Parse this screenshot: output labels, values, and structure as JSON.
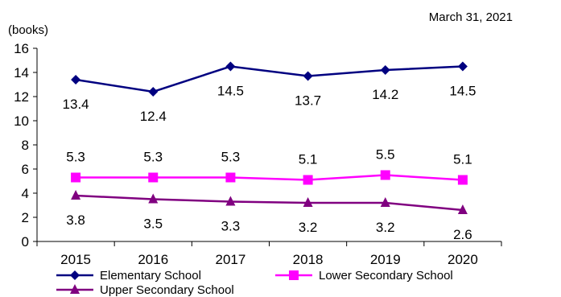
{
  "chart_data": {
    "type": "line",
    "date_note": "March 31, 2021",
    "ylabel": "(books)",
    "xlabel": "",
    "title": "",
    "ylim": [
      0,
      16
    ],
    "yticks": [
      "0",
      "2",
      "4",
      "6",
      "8",
      "10",
      "12",
      "14",
      "16"
    ],
    "categories": [
      "2015",
      "2016",
      "2017",
      "2018",
      "2019",
      "2020"
    ],
    "grid": false,
    "legend_position": "bottom",
    "series": [
      {
        "name": "Elementary School",
        "color": "#000080",
        "marker": "diamond",
        "values": [
          13.4,
          12.4,
          14.5,
          13.7,
          14.2,
          14.5
        ],
        "labels": [
          "13.4",
          "12.4",
          "14.5",
          "13.7",
          "14.2",
          "14.5"
        ],
        "label_position": "below"
      },
      {
        "name": "Lower Secondary School",
        "color": "#ff00ff",
        "marker": "square",
        "values": [
          5.3,
          5.3,
          5.3,
          5.1,
          5.5,
          5.1
        ],
        "labels": [
          "5.3",
          "5.3",
          "5.3",
          "5.1",
          "5.5",
          "5.1"
        ],
        "label_position": "above"
      },
      {
        "name": "Upper Secondary School",
        "color": "#800080",
        "marker": "triangle",
        "values": [
          3.8,
          3.5,
          3.3,
          3.2,
          3.2,
          2.6
        ],
        "labels": [
          "3.8",
          "3.5",
          "3.3",
          "3.2",
          "3.2",
          "2.6"
        ],
        "label_position": "below"
      }
    ]
  }
}
